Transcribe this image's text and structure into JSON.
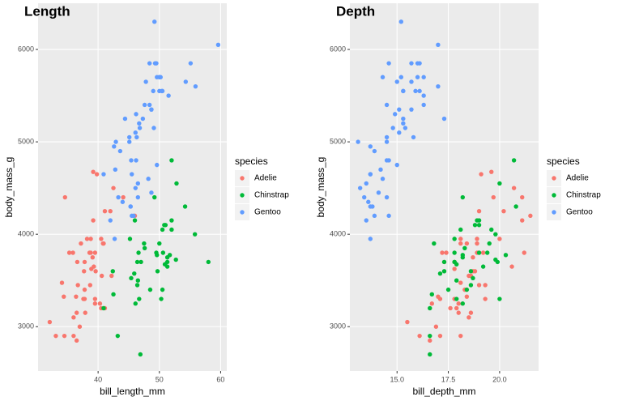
{
  "chart_data": [
    {
      "type": "scatter",
      "title": "Length",
      "x_label": "bill_length_mm",
      "y_label": "body_mass_g",
      "legend_title": "species",
      "legend_position": "right",
      "grid": true,
      "xlim": [
        30.2,
        61
      ],
      "ylim": [
        2520,
        6500
      ],
      "xticks": [
        40,
        50,
        60
      ],
      "yticks": [
        3000,
        4000,
        5000,
        6000
      ],
      "series": [
        {
          "name": "Adelie",
          "color": "#F8766D",
          "x": [
            39.1,
            39.5,
            40.3,
            36.7,
            39.3,
            38.9,
            39.2,
            34.1,
            42,
            37.8,
            37.8,
            41.1,
            38.6,
            34.6,
            36.6,
            38.7,
            42.5,
            34.4,
            46,
            37.8,
            37.7,
            35.9,
            38.2,
            38.8,
            35.3,
            40.6,
            40.5,
            37.9,
            40.5,
            39.5,
            37.2,
            39.5,
            40.9,
            36.4,
            39.2,
            38.8,
            42.2,
            37.6,
            39.8,
            36.5,
            40.8,
            36,
            44.1,
            37,
            39.6,
            41.1,
            32.1,
            33.1,
            36,
            34.5,
            36.5
          ],
          "values": [
            3750,
            3800,
            3250,
            3450,
            3650,
            3625,
            4675,
            3475,
            4250,
            3300,
            3700,
            3200,
            3800,
            4400,
            3700,
            3450,
            4500,
            3325,
            4200,
            3400,
            3600,
            3800,
            3950,
            3800,
            3800,
            3550,
            3200,
            3150,
            3950,
            3250,
            3900,
            3300,
            3900,
            3325,
            4150,
            3950,
            3550,
            3300,
            4650,
            3150,
            3900,
            3100,
            4400,
            3000,
            3600,
            4250,
            3050,
            2900,
            2900,
            2900,
            2850
          ]
        },
        {
          "name": "Chinstrap",
          "color": "#00BA38",
          "x": [
            46.5,
            50,
            51.3,
            45.4,
            52.7,
            45.2,
            46.1,
            51.3,
            46,
            51.3,
            46.6,
            51.7,
            47,
            52,
            45.9,
            50.5,
            50.3,
            58,
            46.4,
            49.2,
            42.4,
            48.5,
            43.2,
            50.6,
            46.7,
            52,
            50.5,
            49.5,
            46.4,
            52.8,
            40.9,
            54.2,
            42.5,
            51,
            49.7,
            47.5,
            47.6,
            52,
            46.9,
            55.8,
            50.9,
            49.6,
            50.8
          ],
          "values": [
            3500,
            3900,
            3650,
            3525,
            3725,
            3950,
            3250,
            3750,
            4150,
            3700,
            3800,
            3775,
            3700,
            4050,
            3575,
            4050,
            3300,
            3700,
            3450,
            4400,
            3600,
            3400,
            2900,
            3800,
            3300,
            4150,
            3400,
            3800,
            3700,
            4550,
            3200,
            4300,
            3350,
            4100,
            3600,
            3900,
            3850,
            4800,
            2700,
            4000,
            3675,
            3775,
            4100
          ]
        },
        {
          "name": "Gentoo",
          "color": "#619CFF",
          "x": [
            46.1,
            50,
            48.7,
            50,
            47.6,
            46.5,
            45.4,
            46.7,
            43.3,
            46.8,
            40.9,
            49,
            45.5,
            48.4,
            45.8,
            49.3,
            42,
            49.2,
            46.2,
            48.7,
            50.2,
            45.1,
            46.5,
            46.3,
            42.9,
            46.1,
            47.8,
            48.2,
            50,
            47.3,
            42.8,
            45.1,
            59.6,
            49.1,
            48.4,
            42.6,
            44.4,
            44,
            48.7,
            42.7,
            49.6,
            45.3,
            49.6,
            50.5,
            43.6,
            45.5,
            50.4,
            45.3,
            46.2,
            49.5,
            55.9,
            54.3,
            51.5,
            55.1
          ],
          "values": [
            4500,
            5700,
            4450,
            5700,
            5400,
            4550,
            4800,
            5200,
            4400,
            5150,
            4650,
            5550,
            4650,
            5850,
            4200,
            5850,
            4150,
            6300,
            4800,
            5350,
            5700,
            5000,
            4400,
            5050,
            5000,
            5100,
            5650,
            4600,
            5550,
            5250,
            4700,
            5050,
            6050,
            5150,
            5400,
            4950,
            5250,
            4350,
            5350,
            3950,
            5700,
            4300,
            4750,
            5550,
            4900,
            4200,
            5550,
            4300,
            5300,
            5850,
            5600,
            5650,
            5500,
            5850
          ]
        }
      ]
    },
    {
      "type": "scatter",
      "title": "Depth",
      "x_label": "bill_depth_mm",
      "y_label": "body_mass_g",
      "legend_title": "species",
      "legend_position": "right",
      "grid": true,
      "xlim": [
        12.7,
        21.9
      ],
      "ylim": [
        2520,
        6500
      ],
      "xticks": [
        {
          "value": 15,
          "label": "15.0"
        },
        17.5,
        {
          "value": 20,
          "label": "20.0"
        }
      ],
      "yticks": [
        3000,
        4000,
        5000,
        6000
      ],
      "series": [
        {
          "name": "Adelie",
          "color": "#F8766D",
          "x": [
            18.7,
            17.4,
            18,
            19.3,
            20.6,
            17.8,
            19.6,
            18.1,
            20.2,
            17.1,
            17.3,
            17.6,
            21.2,
            21.1,
            17.8,
            19,
            20.7,
            18.4,
            21.5,
            18.3,
            18.7,
            19.2,
            18.1,
            17.2,
            18.9,
            18.6,
            17.9,
            18.6,
            18.9,
            16.7,
            18.1,
            17.8,
            18.9,
            17,
            21.1,
            20,
            18.5,
            19.3,
            19.1,
            18,
            18.4,
            18.5,
            19.7,
            16.9,
            18.8,
            19,
            15.5,
            16.1,
            17.1,
            18.1,
            16.6
          ],
          "values": [
            3750,
            3800,
            3250,
            3450,
            3650,
            3625,
            4675,
            3475,
            4250,
            3300,
            3700,
            3200,
            3800,
            4400,
            3700,
            3450,
            4500,
            3325,
            4200,
            3400,
            3600,
            3800,
            3950,
            3800,
            3800,
            3550,
            3200,
            3150,
            3950,
            3250,
            3900,
            3300,
            3900,
            3325,
            4150,
            3950,
            3550,
            3300,
            4650,
            3150,
            3900,
            3100,
            4400,
            3000,
            3600,
            4250,
            3050,
            2900,
            2900,
            2900,
            2850
          ]
        },
        {
          "name": "Chinstrap",
          "color": "#00BA38",
          "x": [
            17.9,
            19.5,
            19.2,
            18.7,
            19.8,
            17.8,
            18.2,
            18.2,
            18.9,
            19.9,
            17.8,
            20.3,
            17.3,
            18.1,
            17.1,
            19.6,
            20,
            17.8,
            18.6,
            18.2,
            17.3,
            17.5,
            16.6,
            19.4,
            17.9,
            19,
            18.4,
            19,
            17.8,
            20,
            16.6,
            20.8,
            16.7,
            18.8,
            18.6,
            16.8,
            18.3,
            20.7,
            16.6,
            19.8,
            17.9,
            18.2,
            19
          ],
          "values": [
            3500,
            3900,
            3650,
            3525,
            3725,
            3950,
            3250,
            3750,
            4150,
            3700,
            3800,
            3775,
            3700,
            4050,
            3575,
            4050,
            3300,
            3700,
            3450,
            4400,
            3600,
            3400,
            2900,
            3800,
            3300,
            4150,
            3400,
            3800,
            3700,
            4550,
            3200,
            4300,
            3350,
            4100,
            3600,
            3900,
            3850,
            4800,
            2700,
            4000,
            3675,
            3775,
            4100
          ]
        },
        {
          "name": "Gentoo",
          "color": "#619CFF",
          "x": [
            13.2,
            16.3,
            14.1,
            15.2,
            14.5,
            13.5,
            14.6,
            15.3,
            13.4,
            15.4,
            13.7,
            16.1,
            13.7,
            14.6,
            14.6,
            15.7,
            13.5,
            15.2,
            14.5,
            15.1,
            14.3,
            14.5,
            14.5,
            15.8,
            13.1,
            15.1,
            15,
            14.3,
            15.3,
            15.3,
            14.2,
            14.5,
            17,
            14.8,
            16.3,
            13.7,
            17.3,
            13.6,
            15.7,
            13.7,
            16,
            13.7,
            15,
            15.9,
            13.9,
            13.9,
            15.3,
            13.8,
            14.9,
            16.1,
            17,
            15.7,
            16.3,
            16
          ],
          "values": [
            4500,
            5700,
            4450,
            5700,
            5400,
            4550,
            4800,
            5200,
            4400,
            5150,
            4650,
            5550,
            4650,
            5850,
            4200,
            5850,
            4150,
            6300,
            4800,
            5350,
            5700,
            5000,
            4400,
            5050,
            5000,
            5100,
            5650,
            4600,
            5550,
            5250,
            4700,
            5050,
            6050,
            5150,
            5400,
            4950,
            5250,
            4350,
            5350,
            3950,
            5700,
            4300,
            4750,
            5550,
            4900,
            4200,
            5550,
            4300,
            5300,
            5850,
            5600,
            5650,
            5500,
            5850
          ]
        }
      ]
    }
  ]
}
